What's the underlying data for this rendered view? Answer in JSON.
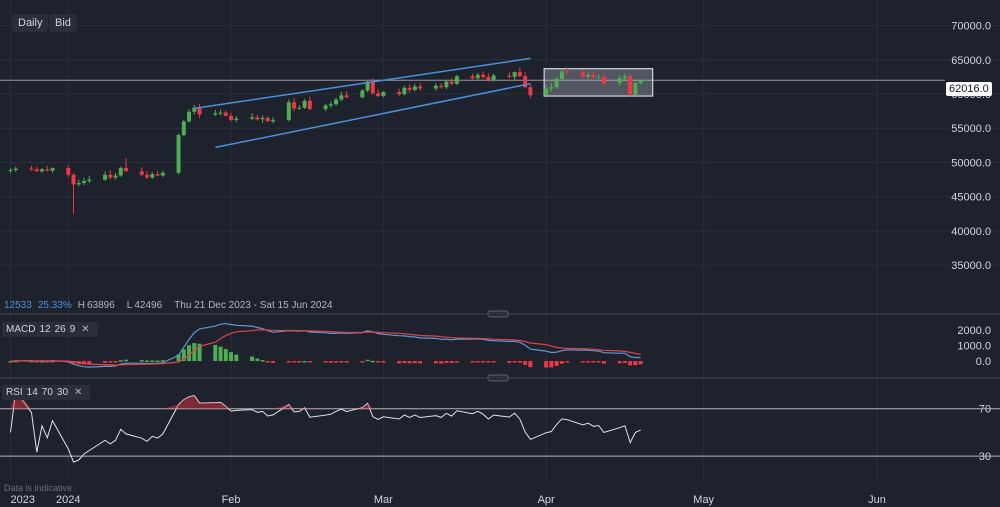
{
  "toolbar": {
    "interval": "Daily",
    "price_type": "Bid"
  },
  "stats": {
    "value_1": "12533",
    "value_2": "25.33%",
    "high_label": "H",
    "high": "63896",
    "low_label": "L",
    "low": "42496",
    "range": "Thu 21 Dec 2023 - Sat 15 Jun 2024"
  },
  "current_price": "62016.0",
  "macd": {
    "name": "MACD",
    "fast": "12",
    "slow": "26",
    "signal": "9"
  },
  "rsi": {
    "name": "RSI",
    "period": "14",
    "upper": "70",
    "lower": "30"
  },
  "footnote": "Data is indicative",
  "colors": {
    "background": "#1e222d",
    "up": "#4caf50",
    "down": "#f23645",
    "channel": "#4a90d9",
    "macd_line": "#5b9bd5",
    "signal_line": "#e0424a",
    "rsi_line": "#e0e3eb",
    "box": "#d1d4dc"
  },
  "chart_data": {
    "type": "candlestick",
    "dates": [
      "2023-12-21",
      "2023-12-22",
      "2023-12-25",
      "2023-12-26",
      "2023-12-27",
      "2023-12-28",
      "2023-12-29",
      "2024-01-01",
      "2024-01-02",
      "2024-01-03",
      "2024-01-04",
      "2024-01-05",
      "2024-01-08",
      "2024-01-09",
      "2024-01-10",
      "2024-01-11",
      "2024-01-12",
      "2024-01-15",
      "2024-01-16",
      "2024-01-17",
      "2024-01-18",
      "2024-01-19",
      "2024-01-22",
      "2024-01-23",
      "2024-01-24",
      "2024-01-25",
      "2024-01-26",
      "2024-01-29",
      "2024-01-30",
      "2024-01-31",
      "2024-02-01",
      "2024-02-02",
      "2024-02-05",
      "2024-02-06",
      "2024-02-07",
      "2024-02-08",
      "2024-02-09",
      "2024-02-12",
      "2024-02-13",
      "2024-02-14",
      "2024-02-15",
      "2024-02-16",
      "2024-02-19",
      "2024-02-20",
      "2024-02-21",
      "2024-02-22",
      "2024-02-23",
      "2024-02-26",
      "2024-02-27",
      "2024-02-28",
      "2024-02-29",
      "2024-03-01",
      "2024-03-04",
      "2024-03-05",
      "2024-03-06",
      "2024-03-07",
      "2024-03-08",
      "2024-03-11",
      "2024-03-12",
      "2024-03-13",
      "2024-03-14",
      "2024-03-15",
      "2024-03-18",
      "2024-03-19",
      "2024-03-20",
      "2024-03-21",
      "2024-03-22",
      "2024-03-25",
      "2024-03-26",
      "2024-03-27",
      "2024-03-28",
      "2024-03-29",
      "2024-04-01",
      "2024-04-02",
      "2024-04-03",
      "2024-04-04",
      "2024-04-05",
      "2024-04-08",
      "2024-04-09",
      "2024-04-10",
      "2024-04-11",
      "2024-04-12",
      "2024-04-15",
      "2024-04-16",
      "2024-04-17",
      "2024-04-18",
      "2024-04-19"
    ],
    "open": [
      48800,
      48900,
      49100,
      49000,
      48700,
      49000,
      48800,
      49200,
      48200,
      46800,
      47000,
      47300,
      47500,
      48200,
      47800,
      48100,
      49200,
      48700,
      48200,
      47800,
      48300,
      48100,
      48500,
      54000,
      56000,
      57400,
      58000,
      57000,
      57200,
      57300,
      56800,
      56200,
      56400,
      56600,
      56300,
      56500,
      56000,
      56200,
      58800,
      57900,
      58000,
      59000,
      57800,
      58300,
      58500,
      59200,
      59800,
      59500,
      60500,
      61800,
      60100,
      59700,
      60300,
      60000,
      60900,
      60600,
      61100,
      60800,
      61200,
      61000,
      61800,
      61500,
      62600,
      62300,
      62800,
      62500,
      62000,
      62700,
      62500,
      63200,
      62600,
      61000,
      59800,
      60800,
      61000,
      62200,
      63300,
      63200,
      62500,
      62800,
      62400,
      62500,
      61600,
      62300,
      62600,
      59900,
      61600
    ],
    "high": [
      49200,
      49400,
      49500,
      49400,
      49200,
      49500,
      49300,
      49600,
      48500,
      47500,
      47800,
      48000,
      48700,
      48900,
      48500,
      49400,
      50600,
      49300,
      48800,
      48600,
      48800,
      48800,
      54200,
      56200,
      57800,
      58400,
      58600,
      57700,
      57700,
      57600,
      57200,
      56800,
      57200,
      57000,
      56900,
      56800,
      56600,
      59200,
      59400,
      58400,
      59300,
      59600,
      58600,
      58900,
      59500,
      60300,
      60400,
      60700,
      62100,
      62300,
      60700,
      60400,
      60800,
      61200,
      61400,
      61500,
      61600,
      61600,
      61600,
      62000,
      62300,
      62800,
      63000,
      63100,
      63300,
      63000,
      63000,
      63200,
      63300,
      63896,
      63200,
      61500,
      61400,
      61600,
      62500,
      63700,
      63900,
      63600,
      63300,
      63300,
      62900,
      63000,
      62700,
      63000,
      62900,
      61800,
      61900
    ],
    "low": [
      48500,
      48600,
      48800,
      48700,
      48500,
      48700,
      48500,
      47900,
      42496,
      46500,
      46700,
      47000,
      47300,
      47500,
      47500,
      47900,
      48900,
      48000,
      47600,
      47600,
      48000,
      47900,
      48300,
      53800,
      55800,
      57000,
      56500,
      56800,
      56900,
      56800,
      56000,
      55900,
      56200,
      56100,
      55800,
      56000,
      55700,
      56000,
      57500,
      57700,
      57800,
      57600,
      57500,
      58000,
      58300,
      58900,
      59400,
      59400,
      60300,
      59900,
      59500,
      59500,
      59700,
      59800,
      60200,
      60400,
      60500,
      60500,
      60800,
      60700,
      61300,
      61300,
      62100,
      62000,
      62200,
      61800,
      61800,
      62300,
      62100,
      62500,
      60800,
      59400,
      59500,
      60400,
      60700,
      62000,
      62900,
      62300,
      62100,
      62200,
      62100,
      61300,
      61200,
      62000,
      59600,
      59600,
      61400
    ],
    "close": [
      48900,
      49100,
      49000,
      48700,
      49000,
      48800,
      49200,
      48200,
      46800,
      47000,
      47300,
      47500,
      48200,
      47800,
      48100,
      49200,
      48700,
      48200,
      47800,
      48300,
      48100,
      48500,
      54000,
      56000,
      57400,
      58000,
      57000,
      57200,
      57300,
      56800,
      56200,
      56400,
      56600,
      56300,
      56500,
      56000,
      56200,
      58800,
      57900,
      58000,
      59000,
      57800,
      58300,
      58500,
      59200,
      59800,
      59500,
      60500,
      61800,
      60100,
      59700,
      60300,
      60000,
      60900,
      60600,
      61100,
      60800,
      61200,
      61000,
      61800,
      61500,
      62600,
      62300,
      62800,
      62500,
      62000,
      62700,
      62500,
      63200,
      62600,
      61000,
      59800,
      60800,
      61000,
      62200,
      63300,
      63200,
      62500,
      62800,
      62400,
      62500,
      61600,
      62300,
      62600,
      59900,
      61600,
      62016
    ],
    "channel_upper": [
      [
        "2024-01-25",
        57900
      ],
      [
        "2024-03-29",
        65200
      ]
    ],
    "channel_lower": [
      [
        "2024-01-29",
        52200
      ],
      [
        "2024-03-29",
        61500
      ]
    ],
    "range_box": {
      "from": "2024-04-01",
      "to": "2024-04-19",
      "top": 63700,
      "bottom": 59700
    },
    "y_ticks": [
      35000,
      40000,
      45000,
      50000,
      55000,
      60000,
      65000,
      70000
    ],
    "ylim": [
      30500,
      73000
    ],
    "x_labels": [
      {
        "date": "2023-12-21",
        "label": "2023"
      },
      {
        "date": "2024-01-01",
        "label": "2024"
      },
      {
        "date": "2024-02-01",
        "label": "Feb"
      },
      {
        "date": "2024-03-01",
        "label": "Mar"
      },
      {
        "date": "2024-04-01",
        "label": "Apr"
      },
      {
        "date": "2024-05-01",
        "label": "May"
      },
      {
        "date": "2024-06-03",
        "label": "Jun"
      }
    ],
    "xlim": [
      "2023-12-19",
      "2024-06-15"
    ],
    "macd_ticks": [
      0,
      1000,
      2000
    ],
    "macd_ylim": [
      -700,
      2500
    ],
    "rsi_ticks": [
      30,
      70
    ],
    "rsi_ylim": [
      20,
      90
    ]
  }
}
